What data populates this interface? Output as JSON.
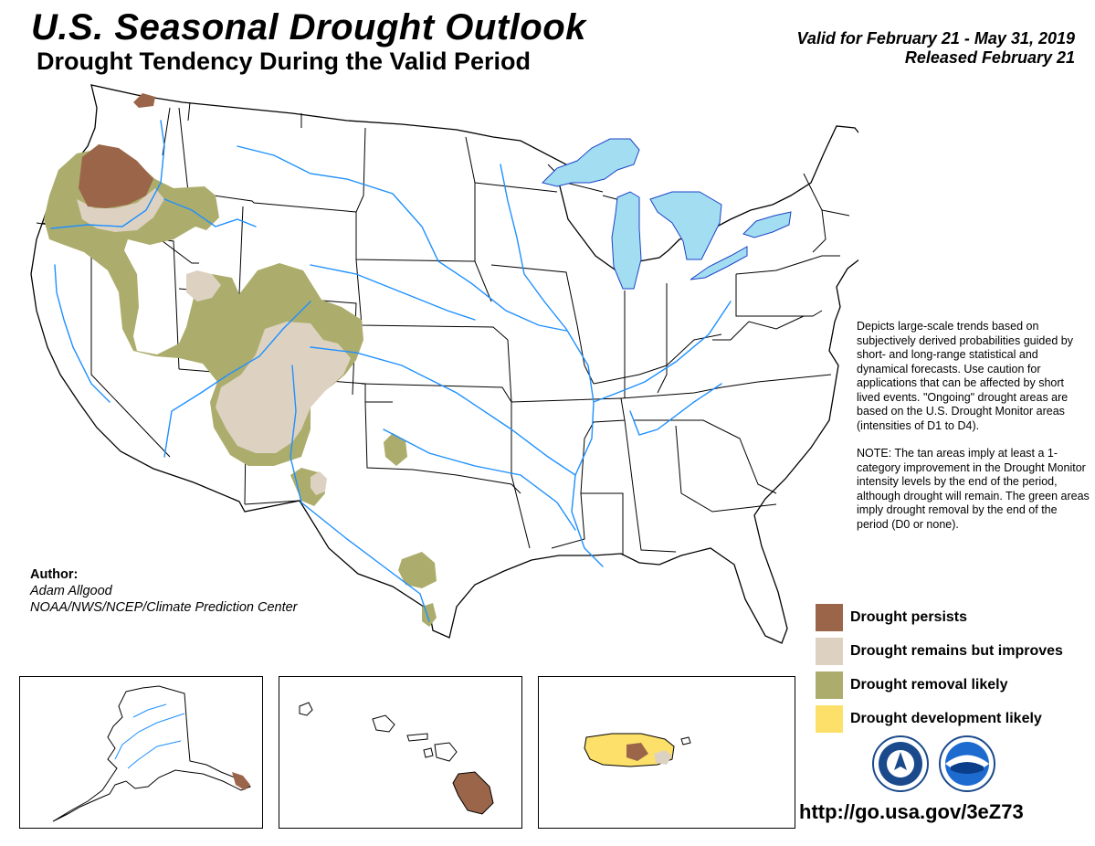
{
  "header": {
    "title": "U.S. Seasonal Drought Outlook",
    "subtitle": "Drought Tendency During the Valid Period",
    "valid": "Valid for February 21 - May 31, 2019",
    "released": "Released February 21"
  },
  "description": {
    "para1": "Depicts large-scale trends based on subjectively derived probabilities guided by short- and long-range statistical and dynamical forecasts. Use caution for applications that can be affected by short lived events. \"Ongoing\" drought areas are based on the U.S. Drought Monitor areas (intensities of D1 to D4).",
    "para2": "NOTE: The tan areas imply at least a 1-category improvement in the Drought Monitor intensity levels by the end of the period, although drought will remain. The green areas imply drought removal by the end of the period (D0 or none)."
  },
  "legend": {
    "items": [
      {
        "label": "Drought persists",
        "color": "#9b6549"
      },
      {
        "label": "Drought remains but improves",
        "color": "#ddd2c2"
      },
      {
        "label": "Drought removal likely",
        "color": "#acad6d"
      },
      {
        "label": "Drought development likely",
        "color": "#fde06a"
      }
    ]
  },
  "author": {
    "label": "Author:",
    "name": "Adam Allgood",
    "org": "NOAA/NWS/NCEP/Climate Prediction Center"
  },
  "url": "http://go.usa.gov/3eZ73",
  "colors": {
    "water": "#a3ddf1",
    "river": "#1e90ff",
    "lake": "#3a5fff"
  }
}
